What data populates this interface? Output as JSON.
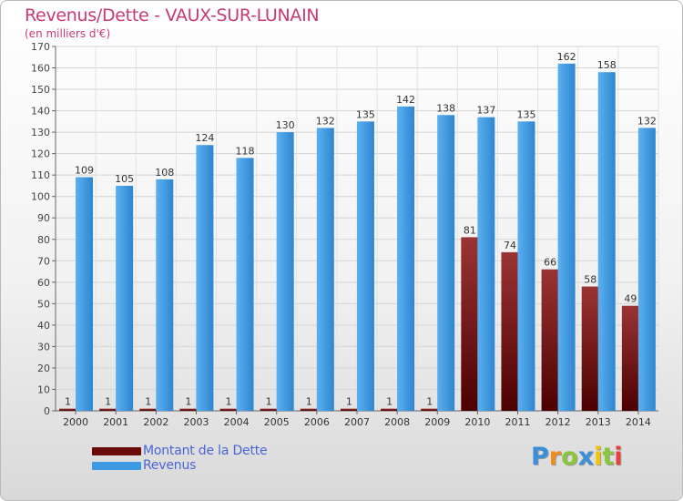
{
  "title": "Revenus/Dette - VAUX-SUR-LUNAIN",
  "subtitle": "(en milliers d'€)",
  "chart_data": {
    "type": "bar",
    "categories": [
      "2000",
      "2001",
      "2002",
      "2003",
      "2004",
      "2005",
      "2006",
      "2007",
      "2008",
      "2009",
      "2010",
      "2011",
      "2012",
      "2013",
      "2014"
    ],
    "series": [
      {
        "name": "Montant de la Dette",
        "color": "#7a1010",
        "values": [
          1,
          1,
          1,
          1,
          1,
          1,
          1,
          1,
          1,
          1,
          81,
          74,
          66,
          58,
          49
        ]
      },
      {
        "name": "Revenus",
        "color": "#3d9ae2",
        "values": [
          109,
          105,
          108,
          124,
          118,
          130,
          132,
          135,
          142,
          138,
          137,
          135,
          162,
          158,
          132
        ]
      }
    ],
    "ylim": [
      0,
      170
    ],
    "yticks": [
      0,
      10,
      20,
      30,
      40,
      50,
      60,
      70,
      80,
      90,
      100,
      110,
      120,
      130,
      140,
      150,
      160,
      170
    ],
    "grid": true,
    "legend_position": "bottom-left"
  },
  "logo": {
    "letters": [
      {
        "char": "P",
        "color": "#3b8fd8"
      },
      {
        "char": "r",
        "color": "#f08c1e"
      },
      {
        "char": "o",
        "color": "#8cc63f"
      },
      {
        "char": "x",
        "color": "#3b8fd8"
      },
      {
        "char": "i",
        "color": "#f2c500"
      },
      {
        "char": "t",
        "color": "#8cc63f"
      },
      {
        "char": "i",
        "color": "#e8403d"
      }
    ]
  }
}
